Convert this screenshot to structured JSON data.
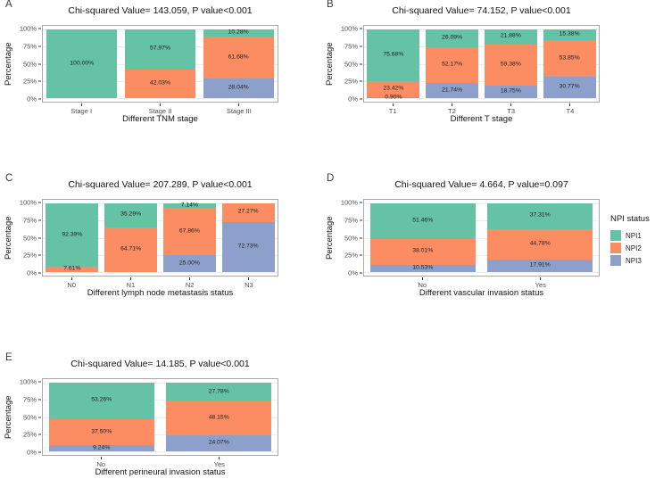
{
  "figure": {
    "background": "#ffffff",
    "legend": {
      "title": "NPI status",
      "entries": [
        {
          "label": "NPI1",
          "color": "#66C2A5"
        },
        {
          "label": "NPI2",
          "color": "#FC8D62"
        },
        {
          "label": "NPI3",
          "color": "#8DA0CB"
        }
      ]
    }
  },
  "chart_data": [
    {
      "type": "bar",
      "stacked": true,
      "panel_letter": "A",
      "title": "Chi-squared Value= 143.059, P value<0.001",
      "xlabel": "Different TNM stage",
      "ylabel": "Percentage",
      "ylim": [
        0,
        100
      ],
      "yticks": [
        "0%",
        "25%",
        "50%",
        "75%",
        "100%"
      ],
      "grid": true,
      "legend_position": "none",
      "categories": [
        "Stage I",
        "Stage II",
        "Stage III"
      ],
      "series": [
        {
          "name": "NPI1",
          "color": "#66C2A5",
          "values": [
            100.0,
            57.97,
            10.28
          ]
        },
        {
          "name": "NPI2",
          "color": "#FC8D62",
          "values": [
            0,
            42.03,
            61.68
          ]
        },
        {
          "name": "NPI3",
          "color": "#8DA0CB",
          "values": [
            0,
            0,
            28.04
          ]
        }
      ]
    },
    {
      "type": "bar",
      "stacked": true,
      "panel_letter": "B",
      "title": "Chi-squared Value= 74.152, P value<0.001",
      "xlabel": "Different T stage",
      "ylabel": "Percentage",
      "ylim": [
        0,
        100
      ],
      "yticks": [
        "0%",
        "25%",
        "50%",
        "75%",
        "100%"
      ],
      "grid": true,
      "legend_position": "none",
      "categories": [
        "T1",
        "T2",
        "T3",
        "T4"
      ],
      "series": [
        {
          "name": "NPI1",
          "color": "#66C2A5",
          "values": [
            75.68,
            26.09,
            21.88,
            15.38
          ]
        },
        {
          "name": "NPI2",
          "color": "#FC8D62",
          "values": [
            23.42,
            52.17,
            59.38,
            53.85
          ]
        },
        {
          "name": "NPI3",
          "color": "#8DA0CB",
          "values": [
            0.9,
            21.74,
            18.75,
            30.77
          ]
        }
      ]
    },
    {
      "type": "bar",
      "stacked": true,
      "panel_letter": "C",
      "title": "Chi-squared Value= 207.289, P value<0.001",
      "xlabel": "Different lymph node metastasis status",
      "ylabel": "Percentage",
      "ylim": [
        0,
        100
      ],
      "yticks": [
        "0%",
        "25%",
        "50%",
        "75%",
        "100%"
      ],
      "grid": true,
      "legend_position": "none",
      "categories": [
        "N0",
        "N1",
        "N2",
        "N3"
      ],
      "series": [
        {
          "name": "NPI1",
          "color": "#66C2A5",
          "values": [
            92.39,
            35.29,
            7.14,
            0
          ]
        },
        {
          "name": "NPI2",
          "color": "#FC8D62",
          "values": [
            7.61,
            64.71,
            67.86,
            27.27
          ]
        },
        {
          "name": "NPI3",
          "color": "#8DA0CB",
          "values": [
            0,
            0,
            25.0,
            72.73
          ]
        }
      ]
    },
    {
      "type": "bar",
      "stacked": true,
      "panel_letter": "D",
      "title": "Chi-squared Value= 4.664, P value=0.097",
      "xlabel": "Different vascular invasion status",
      "ylabel": "Percentage",
      "ylim": [
        0,
        100
      ],
      "yticks": [
        "0%",
        "25%",
        "50%",
        "75%",
        "100%"
      ],
      "grid": true,
      "legend_position": "right",
      "categories": [
        "No",
        "Yes"
      ],
      "series": [
        {
          "name": "NPI1",
          "color": "#66C2A5",
          "values": [
            51.46,
            37.31
          ]
        },
        {
          "name": "NPI2",
          "color": "#FC8D62",
          "values": [
            38.01,
            44.78
          ]
        },
        {
          "name": "NPI3",
          "color": "#8DA0CB",
          "values": [
            10.53,
            17.91
          ]
        }
      ]
    },
    {
      "type": "bar",
      "stacked": true,
      "panel_letter": "E",
      "title": "Chi-squared Value= 14.185, P value<0.001",
      "xlabel": "Different perineural invasion status",
      "ylabel": "Percentage",
      "ylim": [
        0,
        100
      ],
      "yticks": [
        "0%",
        "25%",
        "50%",
        "75%",
        "100%"
      ],
      "grid": true,
      "legend_position": "none",
      "categories": [
        "No",
        "Yes"
      ],
      "series": [
        {
          "name": "NPI1",
          "color": "#66C2A5",
          "values": [
            53.26,
            27.78
          ]
        },
        {
          "name": "NPI2",
          "color": "#FC8D62",
          "values": [
            37.5,
            48.15
          ]
        },
        {
          "name": "NPI3",
          "color": "#8DA0CB",
          "values": [
            9.24,
            24.07
          ]
        }
      ]
    }
  ]
}
